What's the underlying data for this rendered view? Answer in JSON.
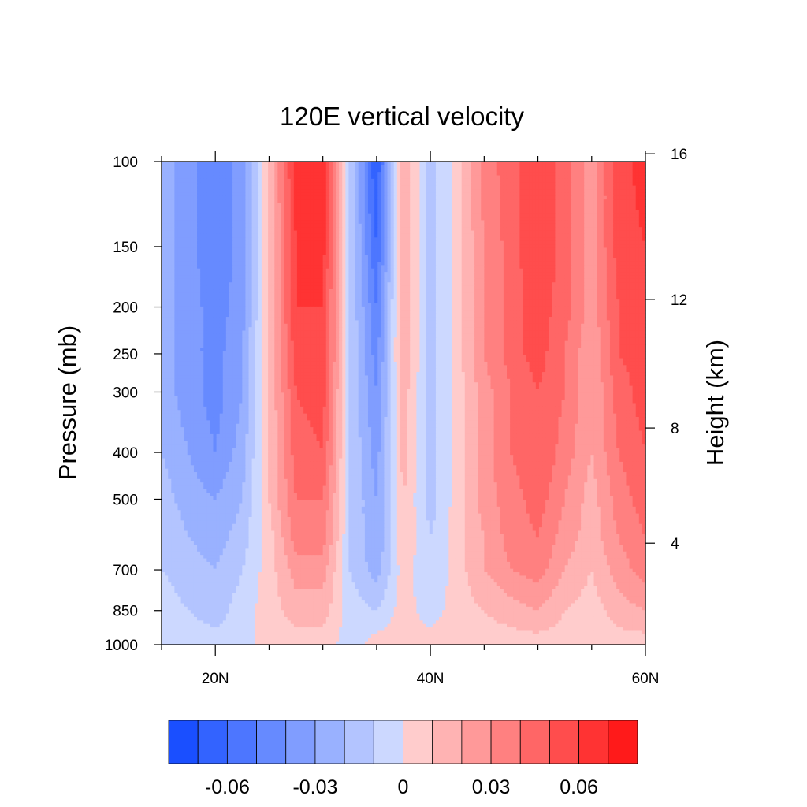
{
  "chart_data": {
    "type": "heatmap",
    "title": "120E vertical velocity",
    "ylabel": "Pressure (mb)",
    "y2label": "Height (km)",
    "xlim": [
      15,
      60
    ],
    "ylim": [
      1000,
      100
    ],
    "y_scale": "log",
    "y_reversed": true,
    "x_ticks": [
      {
        "value": 20,
        "label": "20N"
      },
      {
        "value": 40,
        "label": "40N"
      },
      {
        "value": 60,
        "label": "60N"
      }
    ],
    "x_minor_ticks": [
      15,
      25,
      30,
      35,
      45,
      50,
      55
    ],
    "y_ticks": [
      {
        "value": 100,
        "label": "100"
      },
      {
        "value": 150,
        "label": "150"
      },
      {
        "value": 200,
        "label": "200"
      },
      {
        "value": 250,
        "label": "250"
      },
      {
        "value": 300,
        "label": "300"
      },
      {
        "value": 400,
        "label": "400"
      },
      {
        "value": 500,
        "label": "500"
      },
      {
        "value": 700,
        "label": "700"
      },
      {
        "value": 850,
        "label": "850"
      },
      {
        "value": 1000,
        "label": "1000"
      }
    ],
    "y2_ticks": [
      {
        "value": 16,
        "label": "16"
      },
      {
        "value": 12,
        "label": "12"
      },
      {
        "value": 8,
        "label": "8"
      },
      {
        "value": 4,
        "label": "4"
      }
    ],
    "levels": [
      -0.07,
      -0.06,
      -0.05,
      -0.04,
      -0.03,
      -0.02,
      -0.01,
      0,
      0.01,
      0.02,
      0.03,
      0.04,
      0.05,
      0.06,
      0.07
    ],
    "colors": [
      "#1a4fff",
      "#3363ff",
      "#4d76ff",
      "#668aff",
      "#809dff",
      "#99b1ff",
      "#b3c4ff",
      "#ccd8ff",
      "#ffcccc",
      "#ffb3b3",
      "#ff9999",
      "#ff8080",
      "#ff6666",
      "#ff4d4d",
      "#ff3333",
      "#ff1a1a"
    ],
    "colorbar_labels": [
      {
        "value": -0.06,
        "label": "-0.06"
      },
      {
        "value": -0.03,
        "label": "-0.03"
      },
      {
        "value": 0,
        "label": "0"
      },
      {
        "value": 0.03,
        "label": "0.03"
      },
      {
        "value": 0.06,
        "label": "0.06"
      }
    ],
    "x": [
      15,
      17.5,
      20,
      22.5,
      25,
      27.5,
      30,
      32.5,
      35,
      37.5,
      40,
      42.5,
      45,
      47.5,
      50,
      52.5,
      55,
      57.5,
      60
    ],
    "pressure_levels": [
      100,
      150,
      200,
      250,
      300,
      400,
      500,
      600,
      700,
      850,
      1000
    ],
    "values": [
      [
        -0.025,
        -0.035,
        -0.05,
        -0.035,
        0.01,
        0.065,
        0.065,
        -0.01,
        -0.07,
        0.02,
        -0.015,
        0.005,
        0.035,
        0.045,
        0.06,
        0.045,
        0.025,
        0.055,
        0.065
      ],
      [
        -0.025,
        -0.035,
        -0.05,
        -0.035,
        0.01,
        0.06,
        0.065,
        -0.01,
        -0.06,
        0.02,
        -0.015,
        0.005,
        0.03,
        0.045,
        0.06,
        0.045,
        0.025,
        0.055,
        0.06
      ],
      [
        -0.025,
        -0.035,
        -0.045,
        -0.035,
        0.01,
        0.06,
        0.06,
        -0.01,
        -0.05,
        0.02,
        -0.015,
        0.005,
        0.03,
        0.045,
        0.055,
        0.045,
        0.025,
        0.05,
        0.06
      ],
      [
        -0.025,
        -0.035,
        -0.045,
        -0.03,
        0.01,
        0.055,
        0.06,
        -0.01,
        -0.045,
        0.02,
        -0.015,
        0.005,
        0.03,
        0.045,
        0.055,
        0.04,
        0.02,
        0.05,
        0.055
      ],
      [
        -0.025,
        -0.035,
        -0.045,
        -0.03,
        0.01,
        0.05,
        0.055,
        -0.01,
        -0.04,
        0.015,
        -0.015,
        0.005,
        0.025,
        0.04,
        0.05,
        0.04,
        0.02,
        0.045,
        0.055
      ],
      [
        -0.02,
        -0.03,
        -0.04,
        -0.025,
        0.01,
        0.045,
        0.05,
        -0.01,
        -0.035,
        0.015,
        -0.015,
        0.005,
        0.025,
        0.04,
        0.05,
        0.035,
        0.02,
        0.04,
        0.05
      ],
      [
        -0.015,
        -0.025,
        -0.03,
        -0.02,
        0.01,
        0.04,
        0.04,
        -0.01,
        -0.03,
        0.01,
        -0.015,
        0.005,
        0.025,
        0.035,
        0.045,
        0.03,
        0.015,
        0.035,
        0.045
      ],
      [
        -0.01,
        -0.02,
        -0.025,
        -0.015,
        0.005,
        0.035,
        0.035,
        -0.01,
        -0.03,
        0.01,
        -0.01,
        0.005,
        0.02,
        0.035,
        0.04,
        0.025,
        0.015,
        0.03,
        0.04
      ],
      [
        -0.01,
        -0.015,
        -0.02,
        -0.01,
        0.005,
        0.025,
        0.025,
        -0.01,
        -0.025,
        0.005,
        -0.01,
        0.005,
        0.02,
        0.03,
        0.035,
        0.02,
        0.01,
        0.025,
        0.035
      ],
      [
        -0.005,
        -0.01,
        -0.015,
        -0.005,
        0.005,
        0.015,
        0.015,
        -0.005,
        -0.01,
        0.005,
        -0.005,
        0.005,
        0.01,
        0.015,
        0.02,
        0.01,
        0.005,
        0.015,
        0.02
      ],
      [
        -0.005,
        -0.005,
        -0.005,
        -0.005,
        0.005,
        0.005,
        0.005,
        -0.005,
        0.005,
        0.005,
        0.005,
        0.005,
        0.005,
        0.005,
        0.005,
        0.005,
        0.005,
        0.005,
        0.005
      ]
    ]
  }
}
